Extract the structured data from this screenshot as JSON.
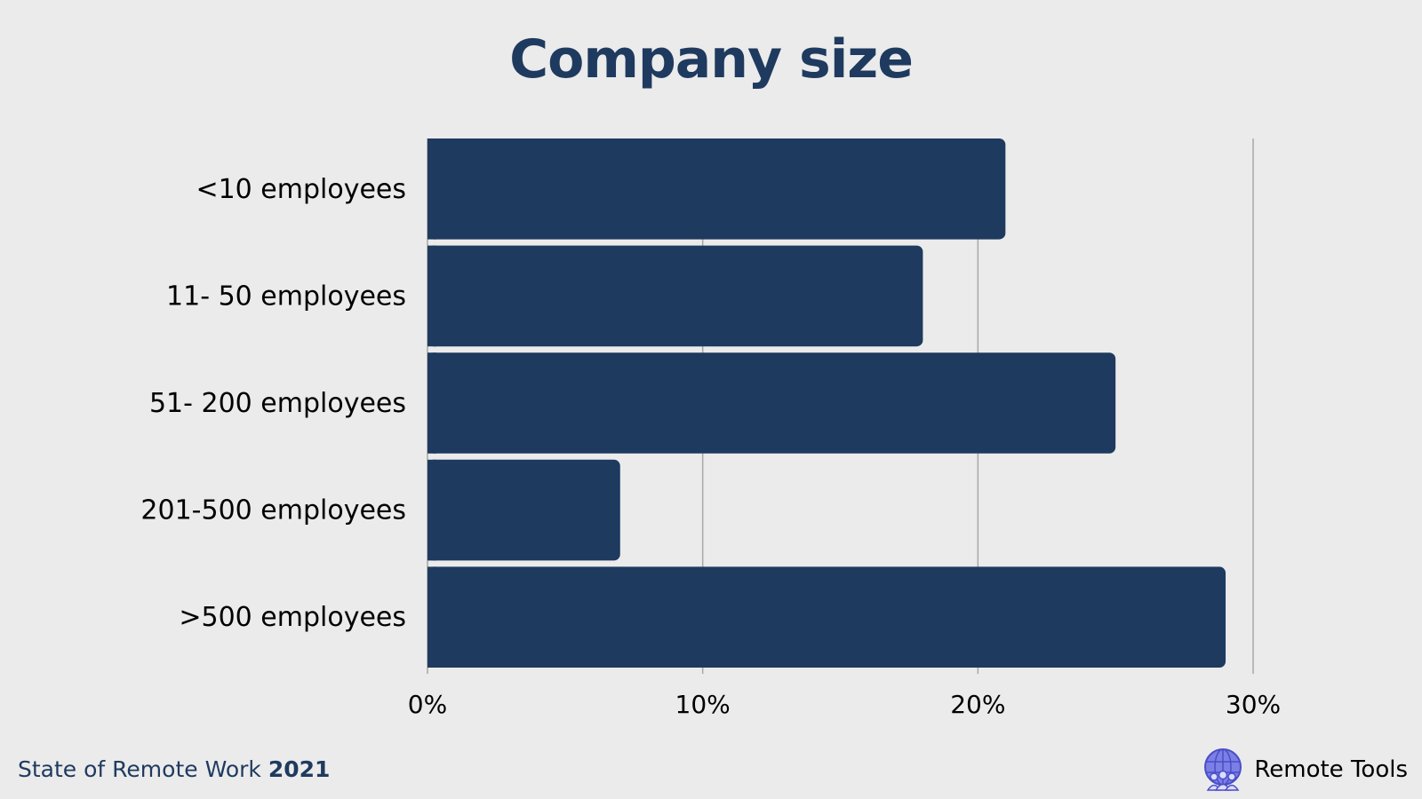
{
  "chart_data": {
    "type": "bar",
    "orientation": "horizontal",
    "title": "Company size",
    "categories": [
      "<10 employees",
      "11- 50 employees",
      "51- 200 employees",
      "201-500 employees",
      ">500 employees"
    ],
    "values": [
      21,
      18,
      25,
      7,
      29
    ],
    "xlim": [
      0,
      30
    ],
    "xticks": [
      0,
      10,
      20,
      30
    ],
    "xtick_labels": [
      "0%",
      "10%",
      "20%",
      "30%"
    ],
    "unit": "%",
    "grid": "vertical",
    "bar_color": "#1f3a5f",
    "xlabel": "",
    "ylabel": ""
  },
  "footer": {
    "source_text": "State of Remote Work",
    "source_year": "2021"
  },
  "brand": {
    "name": "Remote Tools",
    "icon": "globe-people-icon"
  },
  "colors": {
    "background": "#ebebeb",
    "accent": "#1f3a5f",
    "grid": "#a8a8a8",
    "brand_icon": "#5b5fd6"
  }
}
